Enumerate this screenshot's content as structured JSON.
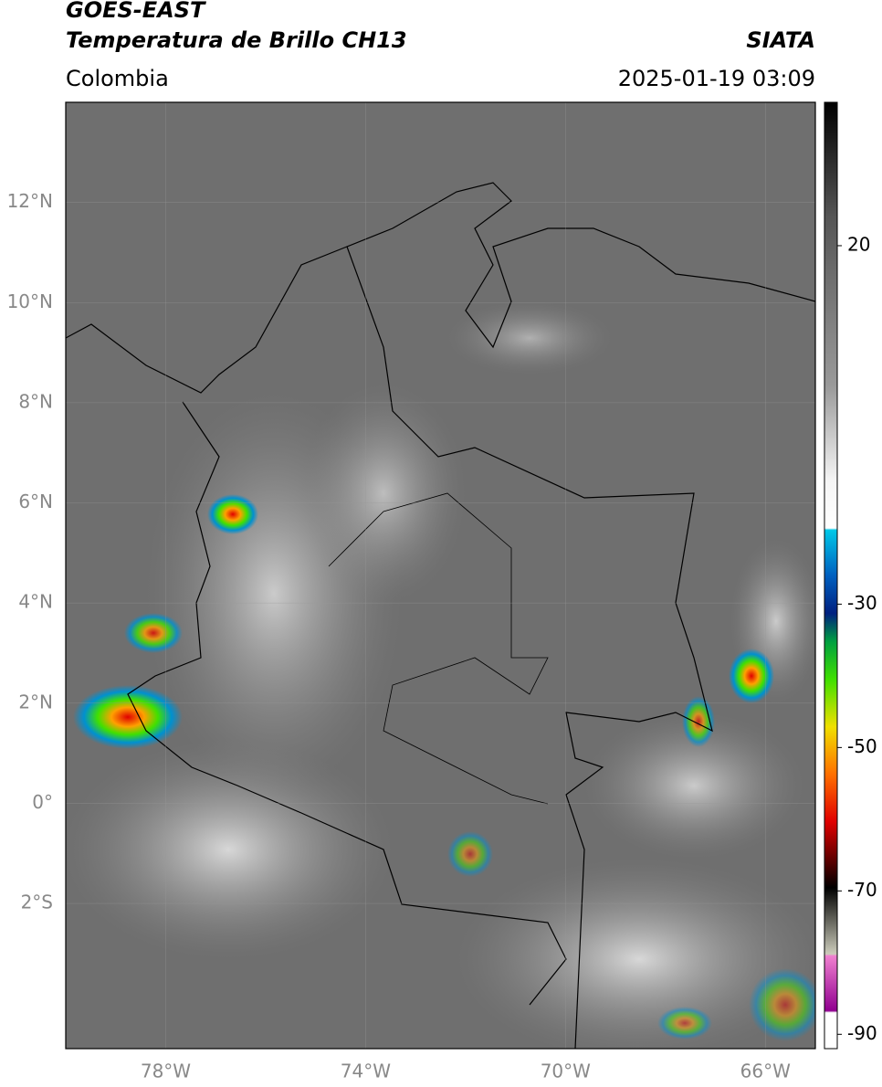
{
  "header": {
    "title": "GOES-EAST",
    "subtitle": "Temperatura de Brillo CH13",
    "region": "Colombia",
    "source": "SIATA",
    "datetime": "2025-01-19 03:09"
  },
  "map": {
    "latlim": [
      -4.9,
      14
    ],
    "lonlim": [
      -80,
      -65
    ],
    "latticks": [
      {
        "value": 12,
        "label": "12°N"
      },
      {
        "value": 10,
        "label": "10°N"
      },
      {
        "value": 8,
        "label": "8°N"
      },
      {
        "value": 6,
        "label": "6°N"
      },
      {
        "value": 4,
        "label": "4°N"
      },
      {
        "value": 2,
        "label": "2°N"
      },
      {
        "value": 0,
        "label": "0°"
      },
      {
        "value": -2,
        "label": "2°S"
      }
    ],
    "lonticks": [
      {
        "value": -78,
        "label": "78°W"
      },
      {
        "value": -74,
        "label": "74°W"
      },
      {
        "value": -70,
        "label": "70°W"
      },
      {
        "value": -66,
        "label": "66°W"
      }
    ]
  },
  "colorbar": {
    "lim": [
      -92,
      40
    ],
    "ticks": [
      20,
      -30,
      -50,
      -70,
      -90
    ]
  }
}
